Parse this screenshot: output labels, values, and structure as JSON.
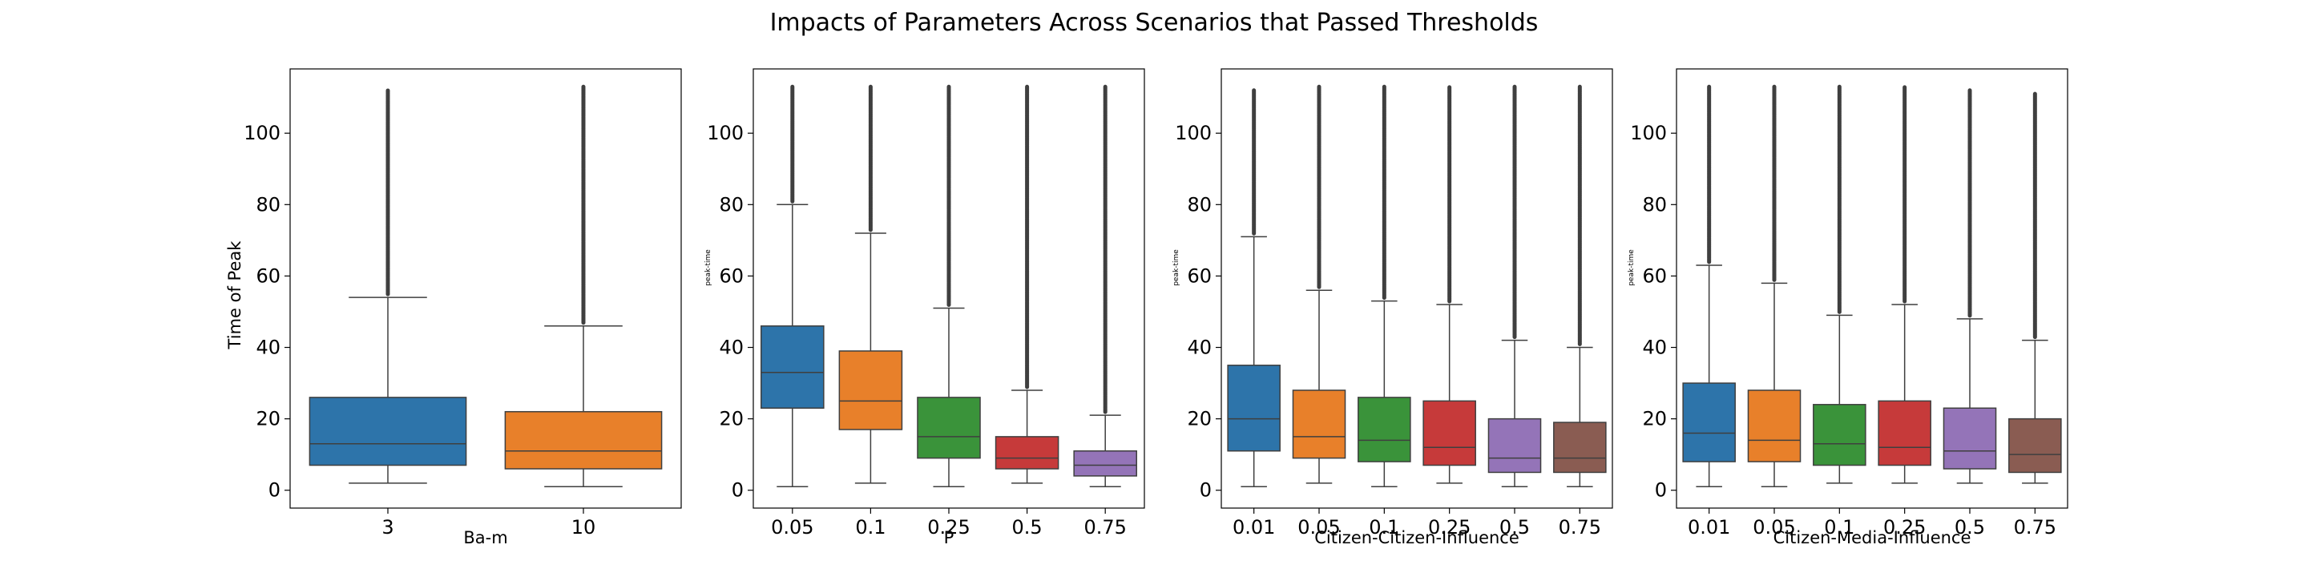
{
  "figure": {
    "title": "Impacts of Parameters Across Scenarios that Passed Thresholds"
  },
  "chart_data": [
    {
      "type": "box",
      "xlabel": "Ba-m",
      "ylabel": "Time of Peak",
      "ylabel_style": "large",
      "ylim": [
        -5,
        118
      ],
      "yticks": [
        0,
        20,
        40,
        60,
        80,
        100
      ],
      "categories": [
        "3",
        "10"
      ],
      "boxes": [
        {
          "category": "3",
          "whisker_low": 2,
          "q1": 7,
          "median": 13,
          "q3": 26,
          "whisker_high": 54,
          "outlier_max": 112,
          "color": "#2d74aa"
        },
        {
          "category": "10",
          "whisker_low": 1,
          "q1": 6,
          "median": 11,
          "q3": 22,
          "whisker_high": 46,
          "outlier_max": 113,
          "color": "#e8802a"
        }
      ]
    },
    {
      "type": "box",
      "xlabel": "P",
      "ylabel": "peak-time",
      "ylabel_style": "small",
      "ylim": [
        -5,
        118
      ],
      "yticks": [
        0,
        20,
        40,
        60,
        80,
        100
      ],
      "categories": [
        "0.05",
        "0.1",
        "0.25",
        "0.5",
        "0.75"
      ],
      "boxes": [
        {
          "category": "0.05",
          "whisker_low": 1,
          "q1": 23,
          "median": 33,
          "q3": 46,
          "whisker_high": 80,
          "outlier_max": 113,
          "color": "#2d74aa"
        },
        {
          "category": "0.1",
          "whisker_low": 2,
          "q1": 17,
          "median": 25,
          "q3": 39,
          "whisker_high": 72,
          "outlier_max": 113,
          "color": "#e8802a"
        },
        {
          "category": "0.25",
          "whisker_low": 1,
          "q1": 9,
          "median": 15,
          "q3": 26,
          "whisker_high": 51,
          "outlier_max": 113,
          "color": "#3a933a"
        },
        {
          "category": "0.5",
          "whisker_low": 2,
          "q1": 6,
          "median": 9,
          "q3": 15,
          "whisker_high": 28,
          "outlier_max": 113,
          "color": "#c63a3a"
        },
        {
          "category": "0.75",
          "whisker_low": 1,
          "q1": 4,
          "median": 7,
          "q3": 11,
          "whisker_high": 21,
          "outlier_max": 113,
          "color": "#9474b8"
        }
      ]
    },
    {
      "type": "box",
      "xlabel": "Citizen-Citizen-Influence",
      "ylabel": "peak-time",
      "ylabel_style": "small",
      "ylim": [
        -5,
        118
      ],
      "yticks": [
        0,
        20,
        40,
        60,
        80,
        100
      ],
      "categories": [
        "0.01",
        "0.05",
        "0.1",
        "0.25",
        "0.5",
        "0.75"
      ],
      "boxes": [
        {
          "category": "0.01",
          "whisker_low": 1,
          "q1": 11,
          "median": 20,
          "q3": 35,
          "whisker_high": 71,
          "outlier_max": 112,
          "color": "#2d74aa"
        },
        {
          "category": "0.05",
          "whisker_low": 2,
          "q1": 9,
          "median": 15,
          "q3": 28,
          "whisker_high": 56,
          "outlier_max": 113,
          "color": "#e8802a"
        },
        {
          "category": "0.1",
          "whisker_low": 1,
          "q1": 8,
          "median": 14,
          "q3": 26,
          "whisker_high": 53,
          "outlier_max": 113,
          "color": "#3a933a"
        },
        {
          "category": "0.25",
          "whisker_low": 2,
          "q1": 7,
          "median": 12,
          "q3": 25,
          "whisker_high": 52,
          "outlier_max": 113,
          "color": "#c63a3a"
        },
        {
          "category": "0.5",
          "whisker_low": 1,
          "q1": 5,
          "median": 9,
          "q3": 20,
          "whisker_high": 42,
          "outlier_max": 113,
          "color": "#9474b8"
        },
        {
          "category": "0.75",
          "whisker_low": 1,
          "q1": 5,
          "median": 9,
          "q3": 19,
          "whisker_high": 40,
          "outlier_max": 113,
          "color": "#8a5c52"
        }
      ]
    },
    {
      "type": "box",
      "xlabel": "Citizen-Media-Influence",
      "ylabel": "peak-time",
      "ylabel_style": "small",
      "ylim": [
        -5,
        118
      ],
      "yticks": [
        0,
        20,
        40,
        60,
        80,
        100
      ],
      "categories": [
        "0.01",
        "0.05",
        "0.1",
        "0.25",
        "0.5",
        "0.75"
      ],
      "boxes": [
        {
          "category": "0.01",
          "whisker_low": 1,
          "q1": 8,
          "median": 16,
          "q3": 30,
          "whisker_high": 63,
          "outlier_max": 113,
          "color": "#2d74aa"
        },
        {
          "category": "0.05",
          "whisker_low": 1,
          "q1": 8,
          "median": 14,
          "q3": 28,
          "whisker_high": 58,
          "outlier_max": 113,
          "color": "#e8802a"
        },
        {
          "category": "0.1",
          "whisker_low": 2,
          "q1": 7,
          "median": 13,
          "q3": 24,
          "whisker_high": 49,
          "outlier_max": 113,
          "color": "#3a933a"
        },
        {
          "category": "0.25",
          "whisker_low": 2,
          "q1": 7,
          "median": 12,
          "q3": 25,
          "whisker_high": 52,
          "outlier_max": 113,
          "color": "#c63a3a"
        },
        {
          "category": "0.5",
          "whisker_low": 2,
          "q1": 6,
          "median": 11,
          "q3": 23,
          "whisker_high": 48,
          "outlier_max": 112,
          "color": "#9474b8"
        },
        {
          "category": "0.75",
          "whisker_low": 2,
          "q1": 5,
          "median": 10,
          "q3": 20,
          "whisker_high": 42,
          "outlier_max": 111,
          "color": "#8a5c52"
        }
      ]
    }
  ]
}
